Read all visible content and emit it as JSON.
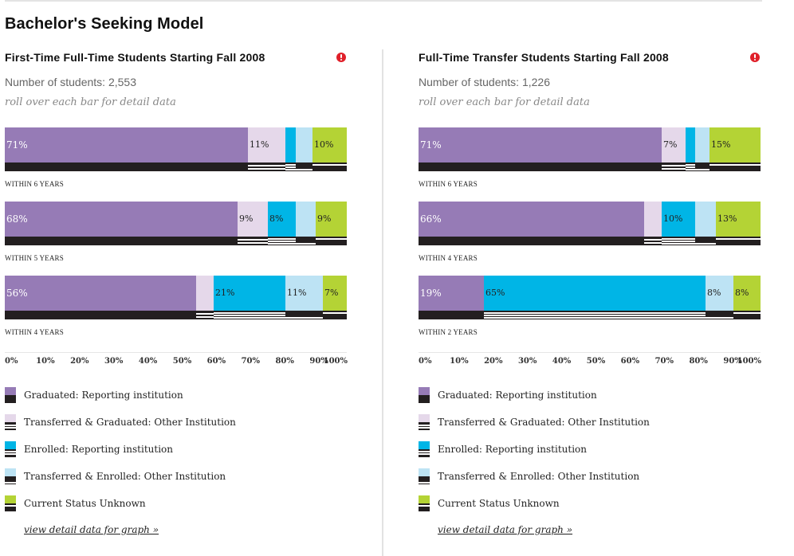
{
  "page": {
    "title": "Bachelor's Seeking Model"
  },
  "colors": {
    "graduated_reporting": "#967bb6",
    "transferred_graduated_other": "#e5d8ea",
    "enrolled_reporting": "#00b5e6",
    "transferred_enrolled_other": "#bde3f4",
    "status_unknown": "#b4d335",
    "stripe": "#231f20",
    "info_icon": "#e0202a"
  },
  "legend": [
    {
      "key": "graduated_reporting",
      "label": "Graduated: Reporting institution",
      "pattern": "solid"
    },
    {
      "key": "transferred_graduated_other",
      "label": "Transferred & Graduated: Other Institution",
      "pattern": "double-line"
    },
    {
      "key": "enrolled_reporting",
      "label": "Enrolled: Reporting institution",
      "pattern": "triple-line"
    },
    {
      "key": "transferred_enrolled_other",
      "label": "Transferred & Enrolled: Other Institution",
      "pattern": "bottom-line"
    },
    {
      "key": "status_unknown",
      "label": "Current Status Unknown",
      "pattern": "top-line"
    }
  ],
  "panels": [
    {
      "title": "First-Time Full-Time Students Starting Fall 2008",
      "count_label": "Number of students: 2,553",
      "hint": "roll over each bar for detail data",
      "detail_link": "view detail data for graph »",
      "axis_ticks": [
        "0%",
        "10%",
        "20%",
        "30%",
        "40%",
        "50%",
        "60%",
        "70%",
        "80%",
        "90%",
        "100%"
      ]
    },
    {
      "title": "Full-Time Transfer Students Starting Fall 2008",
      "count_label": "Number of students: 1,226",
      "hint": "roll over each bar for detail data",
      "detail_link": "view detail data for graph »",
      "axis_ticks": [
        "0%",
        "10%",
        "20%",
        "30%",
        "40%",
        "50%",
        "60%",
        "70%",
        "80%",
        "90%",
        "100%"
      ]
    }
  ],
  "chart_data": [
    {
      "type": "bar",
      "orientation": "horizontal-stacked",
      "title": "First-Time Full-Time Students Starting Fall 2008",
      "xlabel": "",
      "ylabel": "",
      "xlim": [
        0,
        100
      ],
      "categories": [
        "WITHIN 6 YEARS",
        "WITHIN 5 YEARS",
        "WITHIN 4 YEARS"
      ],
      "series": [
        {
          "name": "Graduated: Reporting institution",
          "values": [
            71,
            68,
            56
          ],
          "labels": [
            "71%",
            "68%",
            "56%"
          ]
        },
        {
          "name": "Transferred & Graduated: Other Institution",
          "values": [
            11,
            9,
            5
          ],
          "labels": [
            "11%",
            "9%",
            ""
          ]
        },
        {
          "name": "Enrolled: Reporting institution",
          "values": [
            3,
            8,
            21
          ],
          "labels": [
            "",
            "8%",
            "21%"
          ]
        },
        {
          "name": "Transferred & Enrolled: Other Institution",
          "values": [
            5,
            6,
            11
          ],
          "labels": [
            "",
            "",
            "11%"
          ]
        },
        {
          "name": "Current Status Unknown",
          "values": [
            10,
            9,
            7
          ],
          "labels": [
            "10%",
            "9%",
            "7%"
          ]
        }
      ],
      "legend": "bottom"
    },
    {
      "type": "bar",
      "orientation": "horizontal-stacked",
      "title": "Full-Time Transfer Students Starting Fall 2008",
      "xlabel": "",
      "ylabel": "",
      "xlim": [
        0,
        100
      ],
      "categories": [
        "WITHIN 6 YEARS",
        "WITHIN 4 YEARS",
        "WITHIN 2 YEARS"
      ],
      "series": [
        {
          "name": "Graduated: Reporting institution",
          "values": [
            71,
            66,
            19
          ],
          "labels": [
            "71%",
            "66%",
            "19%"
          ]
        },
        {
          "name": "Transferred & Graduated: Other Institution",
          "values": [
            7,
            5,
            0
          ],
          "labels": [
            "7%",
            "",
            ""
          ]
        },
        {
          "name": "Enrolled: Reporting institution",
          "values": [
            3,
            10,
            65
          ],
          "labels": [
            "",
            "10%",
            "65%"
          ]
        },
        {
          "name": "Transferred & Enrolled: Other Institution",
          "values": [
            4,
            6,
            8
          ],
          "labels": [
            "",
            "",
            "8%"
          ]
        },
        {
          "name": "Current Status Unknown",
          "values": [
            15,
            13,
            8
          ],
          "labels": [
            "15%",
            "13%",
            "8%"
          ]
        }
      ],
      "legend": "bottom"
    }
  ]
}
